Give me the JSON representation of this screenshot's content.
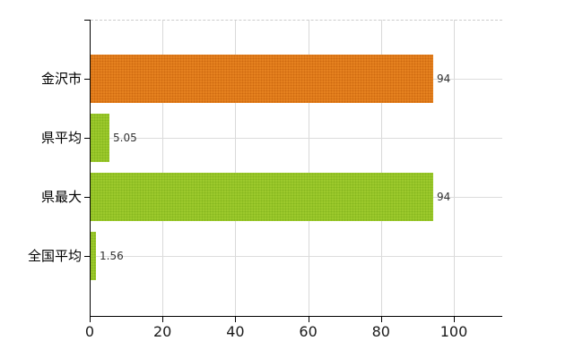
{
  "chart_data": {
    "type": "bar",
    "orientation": "horizontal",
    "title": "",
    "xlabel": "",
    "ylabel": "",
    "categories": [
      "金沢市",
      "県平均",
      "県最大",
      "全国平均"
    ],
    "series": [
      {
        "name": "",
        "values": [
          94,
          5.05,
          94,
          1.56
        ]
      }
    ],
    "value_labels": [
      "94",
      "5.05",
      "94",
      "1.56"
    ],
    "bar_base_colors": [
      "#e5811f",
      "#9cc92c",
      "#9cc92c",
      "#9cc92c"
    ],
    "bar_dot_colors": [
      "#cf6a10",
      "#86b71e",
      "#86b71e",
      "#86b71e"
    ],
    "x_ticks": [
      0,
      20,
      40,
      60,
      80,
      100
    ],
    "xlim": [
      0,
      113
    ],
    "grid": "light-gray vertical lines at x ticks, light-gray horizontal line at each category center, dashed top border",
    "legend": "none",
    "colors": {
      "background": "#ffffff",
      "axis": "#000000",
      "grid": "#d9d9d9",
      "category_label": "#000000",
      "tick_label": "#1a1a1a",
      "value_label": "#333333"
    }
  }
}
